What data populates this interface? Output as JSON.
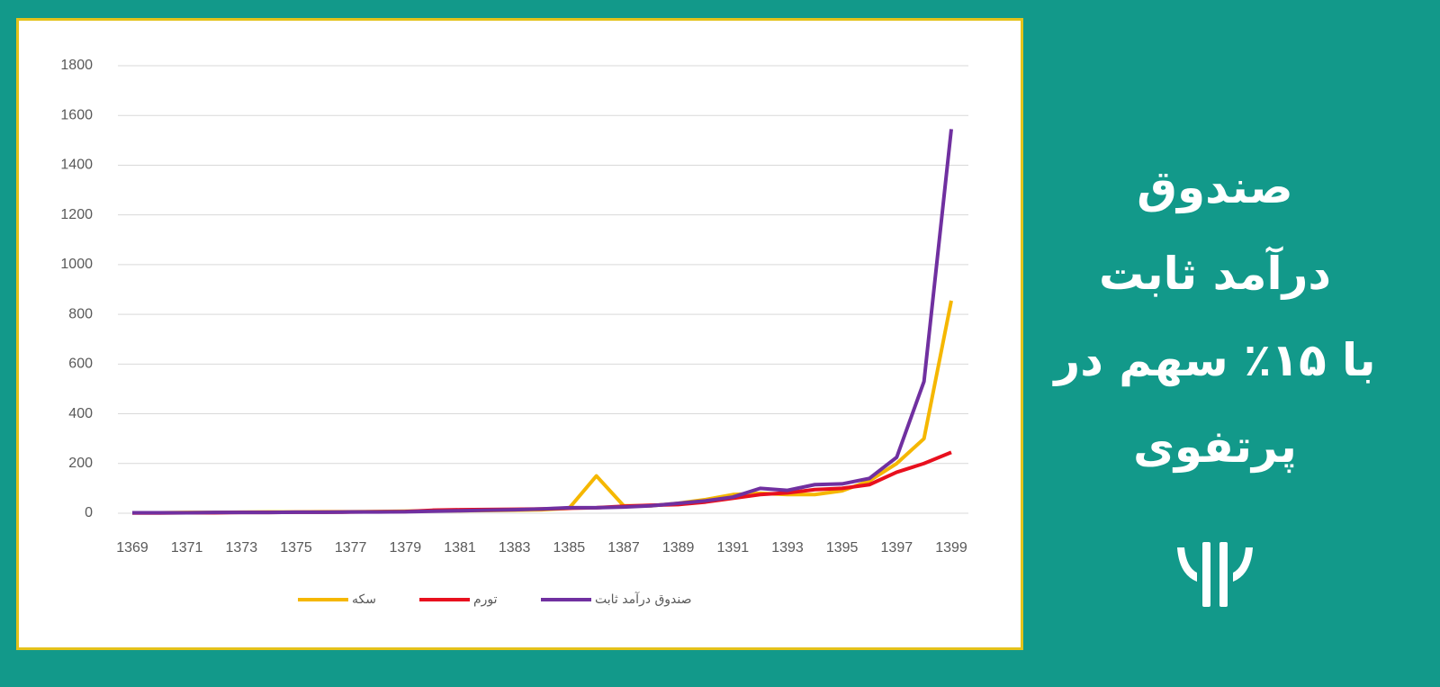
{
  "banner": {
    "lines": [
      "صندوق",
      "درآمد ثابت",
      "با ۱۵٪ سهم در",
      "پرتفوی"
    ]
  },
  "chart_data": {
    "type": "line",
    "x": [
      1369,
      1370,
      1371,
      1372,
      1373,
      1374,
      1375,
      1376,
      1377,
      1378,
      1379,
      1380,
      1381,
      1382,
      1383,
      1384,
      1385,
      1386,
      1387,
      1388,
      1389,
      1390,
      1391,
      1392,
      1393,
      1394,
      1395,
      1396,
      1397,
      1398,
      1399
    ],
    "xlim": [
      1369,
      1399
    ],
    "xticks": [
      1369,
      1371,
      1373,
      1375,
      1377,
      1379,
      1381,
      1383,
      1385,
      1387,
      1389,
      1391,
      1393,
      1395,
      1397,
      1399
    ],
    "ylim": [
      0,
      1800
    ],
    "yticks": [
      0,
      200,
      400,
      600,
      800,
      1000,
      1200,
      1400,
      1600,
      1800
    ],
    "grid": true,
    "legend": "bottom",
    "series": [
      {
        "name": "سکه",
        "color": "#f5b700",
        "values": [
          2,
          2,
          3,
          3,
          4,
          5,
          5,
          6,
          6,
          7,
          8,
          9,
          10,
          11,
          12,
          14,
          20,
          150,
          30,
          30,
          40,
          55,
          75,
          80,
          75,
          75,
          90,
          130,
          200,
          300,
          855
        ]
      },
      {
        "name": "تورم",
        "color": "#e8101e",
        "values": [
          1,
          1,
          2,
          2,
          3,
          3,
          4,
          4,
          5,
          6,
          7,
          12,
          14,
          15,
          16,
          17,
          20,
          22,
          28,
          32,
          35,
          45,
          60,
          75,
          82,
          95,
          100,
          115,
          165,
          200,
          245
        ]
      },
      {
        "name": "صندوق درآمد ثابت",
        "color": "#7030a0",
        "values": [
          2,
          2,
          2,
          3,
          3,
          3,
          4,
          4,
          5,
          5,
          6,
          8,
          10,
          12,
          14,
          17,
          22,
          22,
          25,
          30,
          40,
          50,
          65,
          100,
          92,
          115,
          118,
          140,
          225,
          530,
          1545
        ]
      }
    ]
  }
}
